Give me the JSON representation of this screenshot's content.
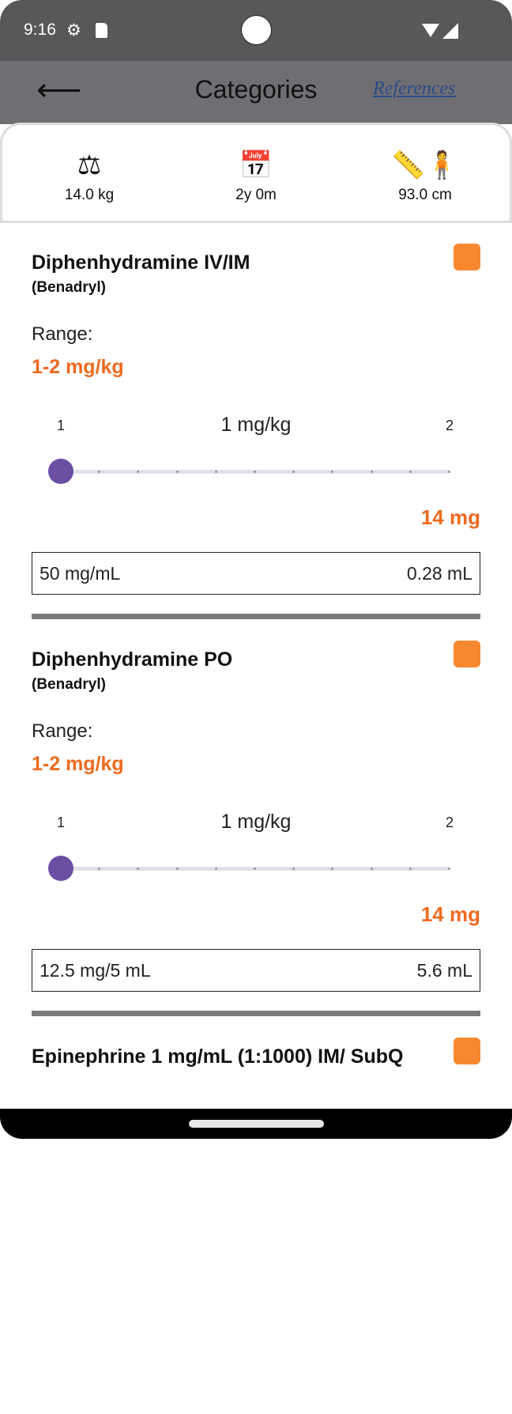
{
  "status_bar": {
    "time": "9:16",
    "icons": [
      "gear-icon",
      "sd-card-icon",
      "wifi-icon",
      "signal-icon"
    ]
  },
  "app_bar": {
    "back_icon": "arrow-left-icon",
    "title": "Categories",
    "references": "References"
  },
  "patient": [
    {
      "icon": "scale-icon",
      "value": "14.0 kg"
    },
    {
      "icon": "calendar-icon",
      "value": "2y 0m"
    },
    {
      "icon": "height-icon",
      "value": "93.0 cm"
    }
  ],
  "colors": {
    "accent": "#ee6a1f",
    "badge": "#f7882f",
    "slider": "#6a4fa3"
  },
  "drugs": [
    {
      "name": "Diphenhydramine IV/IM",
      "brand": "(Benadryl)",
      "range_label": "Range:",
      "range": "1-2 mg/kg",
      "slider_min": "1",
      "slider_max": "2",
      "slider_value": "1 mg/kg",
      "slider_fraction": 0,
      "dose": "14 mg",
      "concentration": "50 mg/mL",
      "volume": "0.28 mL"
    },
    {
      "name": "Diphenhydramine PO",
      "brand": "(Benadryl)",
      "range_label": "Range:",
      "range": "1-2 mg/kg",
      "slider_min": "1",
      "slider_max": "2",
      "slider_value": "1 mg/kg",
      "slider_fraction": 0,
      "dose": "14 mg",
      "concentration": "12.5 mg/5 mL",
      "volume": "5.6 mL"
    },
    {
      "name": "Epinephrine 1 mg/mL (1:1000) IM/ SubQ"
    }
  ]
}
